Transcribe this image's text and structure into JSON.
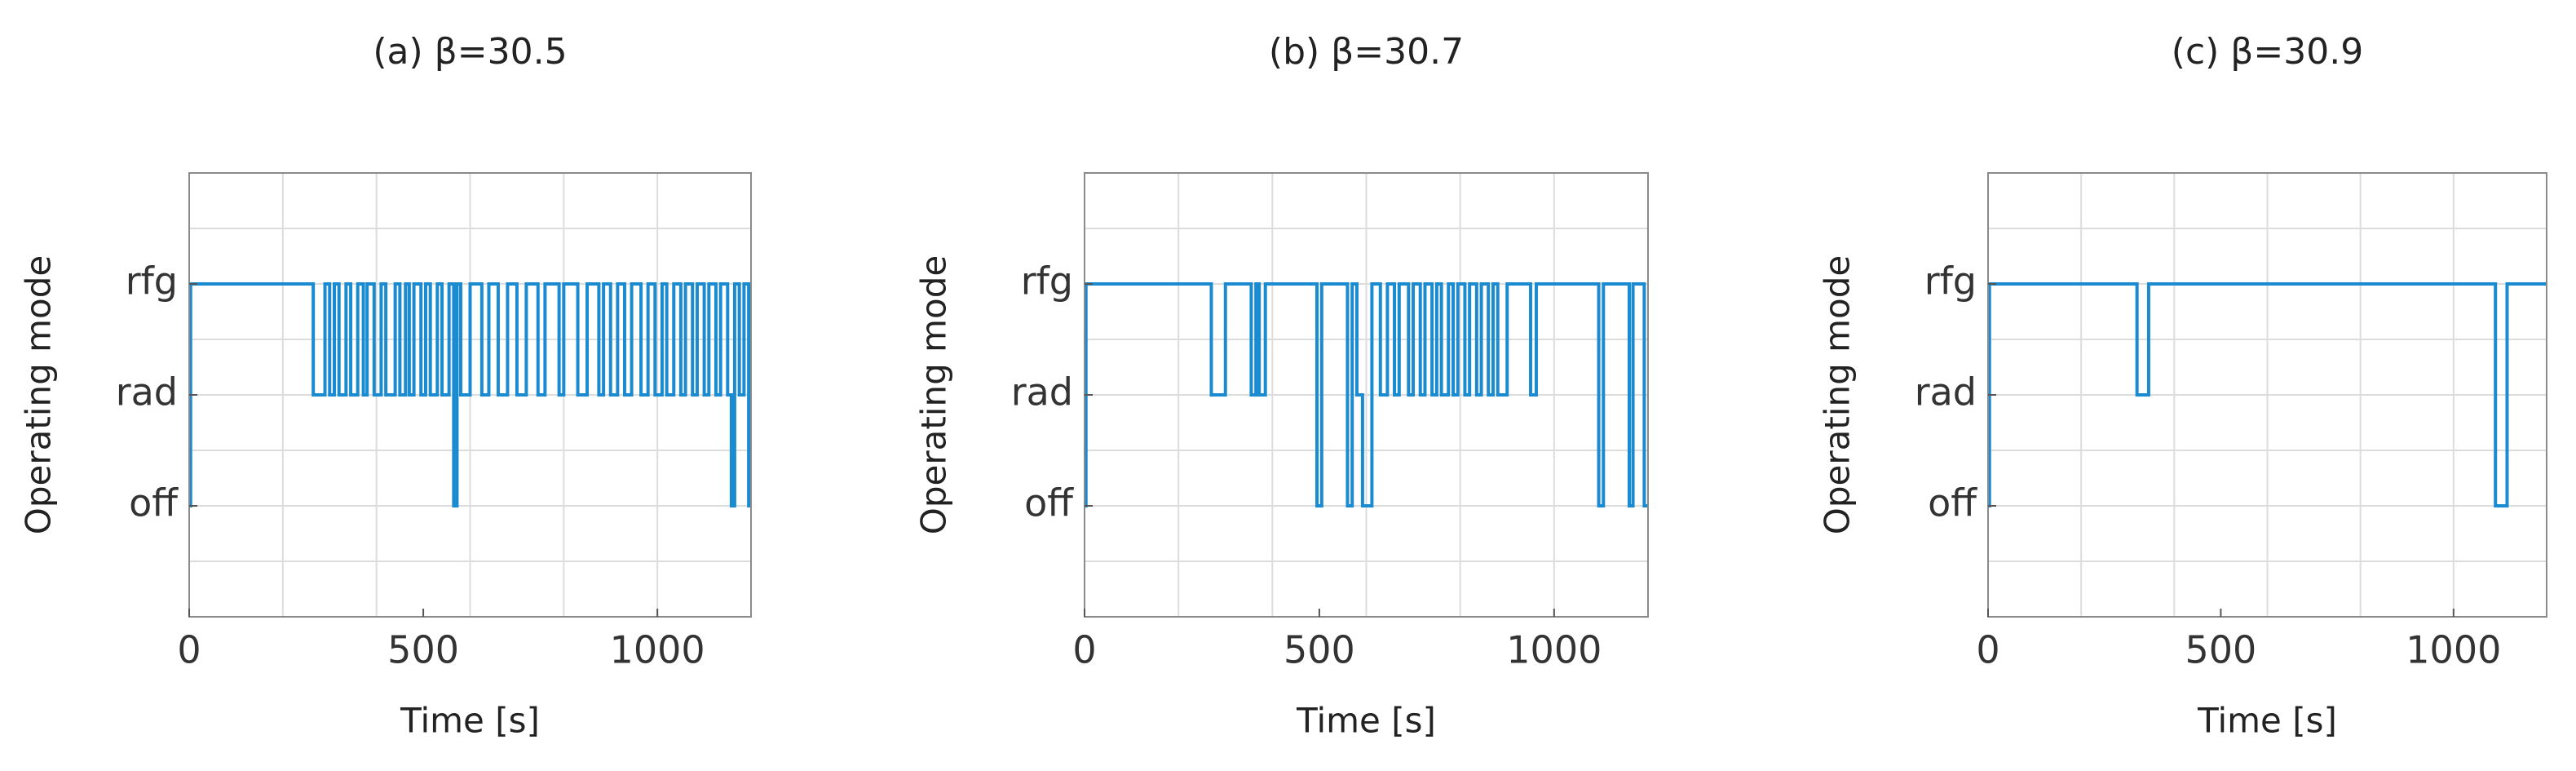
{
  "chart_data": [
    {
      "type": "line",
      "step": true,
      "title": "(a) β=30.5",
      "xlabel": "Time [s]",
      "ylabel": "Operating mode",
      "color": "#1a8bd0",
      "grid": true,
      "xlim": [
        0,
        1200
      ],
      "xticks": [
        0,
        500,
        1000
      ],
      "xgrid": [
        200,
        400,
        600,
        800,
        1000
      ],
      "ylim": [
        0,
        4
      ],
      "yticks": [
        {
          "value": 1,
          "label": "off"
        },
        {
          "value": 2,
          "label": "rad"
        },
        {
          "value": 3,
          "label": "rfg"
        }
      ],
      "ygrid": [
        0.5,
        1,
        1.5,
        2,
        2.5,
        3,
        3.5
      ],
      "x": [
        0,
        3,
        265,
        290,
        300,
        310,
        320,
        335,
        345,
        360,
        372,
        380,
        395,
        410,
        420,
        440,
        450,
        462,
        470,
        480,
        495,
        505,
        515,
        530,
        540,
        555,
        565,
        572,
        580,
        600,
        625,
        640,
        660,
        680,
        700,
        720,
        745,
        760,
        790,
        800,
        830,
        850,
        875,
        885,
        900,
        915,
        930,
        945,
        965,
        980,
        995,
        1010,
        1020,
        1035,
        1050,
        1060,
        1075,
        1085,
        1100,
        1110,
        1125,
        1135,
        1150,
        1158,
        1165,
        1175,
        1185,
        1195
      ],
      "values": [
        1,
        3,
        2,
        3,
        2,
        3,
        2,
        3,
        2,
        3,
        2,
        3,
        2,
        3,
        2,
        3,
        2,
        3,
        2,
        3,
        2,
        3,
        2,
        3,
        2,
        3,
        1,
        3,
        2,
        3,
        2,
        3,
        2,
        3,
        2,
        3,
        2,
        3,
        2,
        3,
        2,
        3,
        2,
        3,
        2,
        3,
        2,
        3,
        2,
        3,
        2,
        3,
        2,
        3,
        2,
        3,
        2,
        3,
        2,
        3,
        2,
        3,
        2,
        1,
        3,
        2,
        3,
        1
      ]
    },
    {
      "type": "line",
      "step": true,
      "title": "(b) β=30.7",
      "xlabel": "Time [s]",
      "ylabel": "Operating mode",
      "color": "#1a8bd0",
      "grid": true,
      "xlim": [
        0,
        1200
      ],
      "xticks": [
        0,
        500,
        1000
      ],
      "xgrid": [
        200,
        400,
        600,
        800,
        1000
      ],
      "ylim": [
        0,
        4
      ],
      "yticks": [
        {
          "value": 1,
          "label": "off"
        },
        {
          "value": 2,
          "label": "rad"
        },
        {
          "value": 3,
          "label": "rfg"
        }
      ],
      "ygrid": [
        0.5,
        1,
        1.5,
        2,
        2.5,
        3,
        3.5
      ],
      "x": [
        0,
        3,
        270,
        300,
        355,
        365,
        372,
        385,
        495,
        505,
        560,
        570,
        580,
        592,
        612,
        630,
        645,
        660,
        670,
        690,
        700,
        715,
        725,
        740,
        750,
        760,
        775,
        785,
        795,
        810,
        820,
        835,
        845,
        860,
        870,
        880,
        900,
        950,
        962,
        1095,
        1105,
        1160,
        1168,
        1192
      ],
      "values": [
        1,
        3,
        2,
        3,
        2,
        3,
        2,
        3,
        1,
        3,
        1,
        3,
        2,
        1,
        3,
        2,
        3,
        2,
        3,
        2,
        3,
        2,
        3,
        2,
        3,
        2,
        3,
        2,
        3,
        2,
        3,
        2,
        3,
        2,
        3,
        2,
        3,
        2,
        3,
        1,
        3,
        1,
        3,
        1
      ]
    },
    {
      "type": "line",
      "step": true,
      "title": "(c) β=30.9",
      "xlabel": "Time [s]",
      "ylabel": "Operating mode",
      "color": "#1a8bd0",
      "grid": true,
      "xlim": [
        0,
        1200
      ],
      "xticks": [
        0,
        500,
        1000
      ],
      "xgrid": [
        200,
        400,
        600,
        800,
        1000
      ],
      "ylim": [
        0,
        4
      ],
      "yticks": [
        {
          "value": 1,
          "label": "off"
        },
        {
          "value": 2,
          "label": "rad"
        },
        {
          "value": 3,
          "label": "rfg"
        }
      ],
      "ygrid": [
        0.5,
        1,
        1.5,
        2,
        2.5,
        3,
        3.5
      ],
      "x": [
        0,
        3,
        320,
        345,
        1090,
        1115
      ],
      "values": [
        1,
        3,
        2,
        3,
        1,
        3
      ]
    }
  ]
}
